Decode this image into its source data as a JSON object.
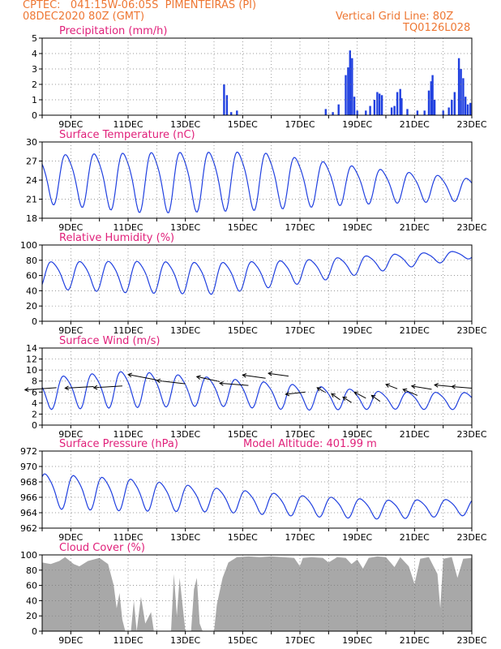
{
  "header": {
    "line1_left": "CPTEC:   041:15W-06:05S  PIMENTEIRAS (PI)",
    "line2_left": "08DEC2020 80Z (GMT)",
    "line1_right": "Vertical Grid Line: 80Z",
    "line2_right": "TQ0126L028",
    "model_altitude": "Model Altitude: 401.99 m"
  },
  "colors": {
    "title": "#e0207a",
    "header": "#ee7733",
    "series": "#2040e0",
    "cloud": "#a8a8a8",
    "grid": "#777777"
  },
  "x_ticks": [
    "9DEC",
    "11DEC",
    "13DEC",
    "15DEC",
    "17DEC",
    "19DEC",
    "21DEC",
    "23DEC"
  ],
  "x_range_days": [
    8.0,
    23.0
  ],
  "chart_data": [
    {
      "type": "bar",
      "title": "Precipitation (mm/h)",
      "ylim": [
        0,
        5
      ],
      "yticks": [
        "0",
        "1",
        "2",
        "3",
        "4",
        "5"
      ],
      "points": [
        [
          14.35,
          2.0
        ],
        [
          14.45,
          1.3
        ],
        [
          14.6,
          0.2
        ],
        [
          14.8,
          0.3
        ],
        [
          17.9,
          0.4
        ],
        [
          18.15,
          0.2
        ],
        [
          18.35,
          0.7
        ],
        [
          18.6,
          2.6
        ],
        [
          18.68,
          3.1
        ],
        [
          18.75,
          4.2
        ],
        [
          18.82,
          3.7
        ],
        [
          18.9,
          1.2
        ],
        [
          19.0,
          0.3
        ],
        [
          19.3,
          0.3
        ],
        [
          19.45,
          0.6
        ],
        [
          19.6,
          1.0
        ],
        [
          19.7,
          1.5
        ],
        [
          19.78,
          1.4
        ],
        [
          19.86,
          1.3
        ],
        [
          20.2,
          0.5
        ],
        [
          20.3,
          0.6
        ],
        [
          20.4,
          1.5
        ],
        [
          20.5,
          1.7
        ],
        [
          20.55,
          1.1
        ],
        [
          20.75,
          0.4
        ],
        [
          21.1,
          0.3
        ],
        [
          21.35,
          0.3
        ],
        [
          21.5,
          1.6
        ],
        [
          21.58,
          2.2
        ],
        [
          21.63,
          2.6
        ],
        [
          21.7,
          1.0
        ],
        [
          22.0,
          0.3
        ],
        [
          22.2,
          0.5
        ],
        [
          22.3,
          1.0
        ],
        [
          22.4,
          1.5
        ],
        [
          22.55,
          3.7
        ],
        [
          22.62,
          3.0
        ],
        [
          22.7,
          2.4
        ],
        [
          22.78,
          1.2
        ],
        [
          22.86,
          0.7
        ],
        [
          22.95,
          0.8
        ]
      ]
    },
    {
      "type": "line",
      "title": "Surface Temperature (nC)",
      "ylim": [
        18,
        31
      ],
      "yticks": [
        "18",
        "21",
        "24",
        "27",
        "30"
      ],
      "waves": {
        "mean": [
          25.0,
          24.5,
          24.8,
          23.8,
          23.0
        ],
        "amp": [
          4.0,
          5.0,
          4.8,
          3.0,
          1.8
        ],
        "phase": 0.62
      }
    },
    {
      "type": "line",
      "title": "Relative Humidity (%)",
      "ylim": [
        0,
        100
      ],
      "yticks": [
        "0",
        "20",
        "40",
        "60",
        "80",
        "100"
      ],
      "waves": {
        "mean": [
          62,
          60,
          58,
          66,
          78,
          88
        ],
        "amp": [
          17,
          20,
          20,
          15,
          10,
          5
        ],
        "phase": 0.12
      }
    },
    {
      "type": "line",
      "title": "Surface Wind (m/s)",
      "ylim": [
        0,
        14
      ],
      "yticks": [
        "0",
        "2",
        "4",
        "6",
        "8",
        "10",
        "12",
        "14"
      ],
      "waves": {
        "mean": [
          6.0,
          6.8,
          6.3,
          5.2,
          4.6,
          4.5
        ],
        "amp": [
          2.8,
          3.2,
          2.5,
          2.2,
          1.5,
          1.5
        ],
        "phase": 0.55
      }
    },
    {
      "type": "line",
      "title": "Surface Pressure (hPa)",
      "ylim": [
        962,
        972
      ],
      "yticks": [
        "962",
        "964",
        "966",
        "968",
        "970",
        "972"
      ],
      "waves": {
        "mean": [
          967.0,
          966.5,
          965.8,
          965.0,
          964.5,
          964.8
        ],
        "amp": [
          2.2,
          2.0,
          1.5,
          1.3,
          1.2,
          1.0
        ],
        "phase": 0.9
      }
    },
    {
      "type": "area",
      "title": "Cloud Cover (%)",
      "ylim": [
        0,
        100
      ],
      "yticks": [
        "0",
        "20",
        "40",
        "60",
        "80",
        "100"
      ],
      "points": [
        [
          8.0,
          90
        ],
        [
          8.3,
          88
        ],
        [
          8.6,
          92
        ],
        [
          8.8,
          97
        ],
        [
          9.1,
          88
        ],
        [
          9.3,
          85
        ],
        [
          9.6,
          92
        ],
        [
          10.0,
          96
        ],
        [
          10.3,
          88
        ],
        [
          10.5,
          60
        ],
        [
          10.6,
          30
        ],
        [
          10.7,
          50
        ],
        [
          10.8,
          15
        ],
        [
          10.9,
          0
        ],
        [
          11.1,
          0
        ],
        [
          11.2,
          40
        ],
        [
          11.3,
          0
        ],
        [
          11.45,
          45
        ],
        [
          11.6,
          10
        ],
        [
          11.8,
          25
        ],
        [
          11.9,
          0
        ],
        [
          12.5,
          0
        ],
        [
          12.6,
          75
        ],
        [
          12.7,
          20
        ],
        [
          12.8,
          70
        ],
        [
          12.9,
          35
        ],
        [
          13.0,
          0
        ],
        [
          13.2,
          0
        ],
        [
          13.3,
          55
        ],
        [
          13.4,
          70
        ],
        [
          13.5,
          10
        ],
        [
          13.6,
          0
        ],
        [
          14.0,
          0
        ],
        [
          14.1,
          35
        ],
        [
          14.3,
          70
        ],
        [
          14.5,
          90
        ],
        [
          14.8,
          97
        ],
        [
          15.2,
          98
        ],
        [
          15.6,
          97
        ],
        [
          16.0,
          98
        ],
        [
          16.4,
          97
        ],
        [
          16.8,
          96
        ],
        [
          17.0,
          85
        ],
        [
          17.1,
          96
        ],
        [
          17.4,
          97
        ],
        [
          17.8,
          96
        ],
        [
          18.0,
          90
        ],
        [
          18.3,
          97
        ],
        [
          18.6,
          96
        ],
        [
          18.8,
          88
        ],
        [
          19.0,
          94
        ],
        [
          19.2,
          82
        ],
        [
          19.4,
          96
        ],
        [
          19.7,
          98
        ],
        [
          20.0,
          97
        ],
        [
          20.3,
          84
        ],
        [
          20.5,
          97
        ],
        [
          20.8,
          85
        ],
        [
          21.0,
          62
        ],
        [
          21.2,
          95
        ],
        [
          21.5,
          97
        ],
        [
          21.8,
          75
        ],
        [
          21.9,
          30
        ],
        [
          22.0,
          95
        ],
        [
          22.3,
          97
        ],
        [
          22.5,
          70
        ],
        [
          22.7,
          95
        ],
        [
          23.0,
          96
        ]
      ]
    }
  ]
}
